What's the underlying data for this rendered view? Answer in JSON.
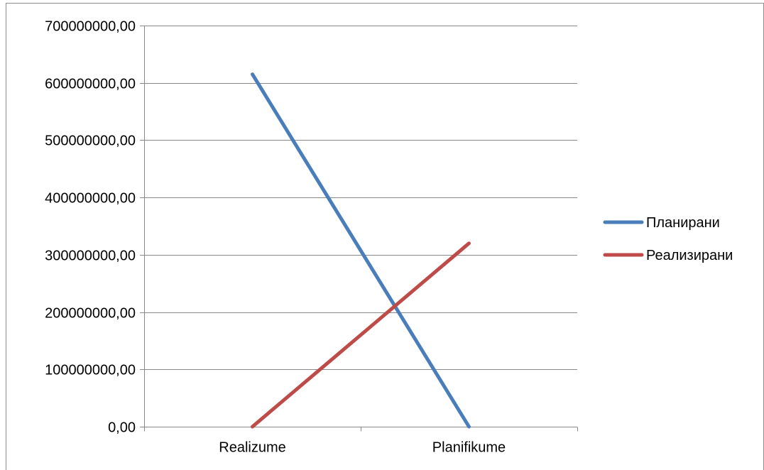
{
  "chart_data": {
    "type": "line",
    "categories": [
      "Realizume",
      "Planifikume"
    ],
    "series": [
      {
        "name": "Планирани",
        "values": [
          615000000,
          0
        ],
        "color": "#4a7ebb"
      },
      {
        "name": "Реализирани",
        "values": [
          0,
          320000000
        ],
        "color": "#be4b48"
      }
    ],
    "yticks": [
      "0,00",
      "100000000,00",
      "200000000,00",
      "300000000,00",
      "400000000,00",
      "500000000,00",
      "600000000,00",
      "700000000,00"
    ],
    "ylim": [
      0,
      700000000
    ],
    "ystep": 100000000,
    "grid": true,
    "legend_position": "right",
    "gridline_color": "#888888"
  }
}
